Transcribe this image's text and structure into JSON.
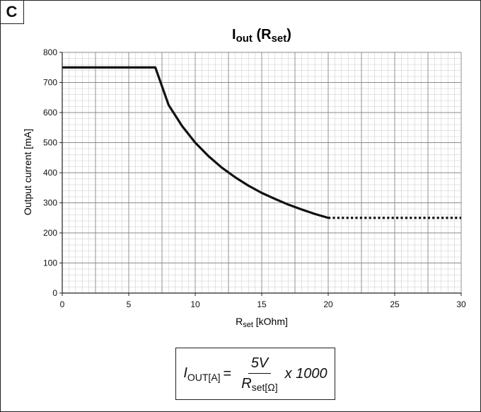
{
  "panel": {
    "label": "C"
  },
  "chart_data": {
    "type": "line",
    "title": "Iout (Rset)",
    "title_main": "I",
    "title_sub": "out",
    "title_rest": " (R",
    "title_rest_sub": "set",
    "title_close": ")",
    "xlabel": "Rset [kOhm]",
    "xlabel_main": "R",
    "xlabel_sub": "set",
    "xlabel_rest": " [kOhm]",
    "ylabel": "Output current [mA]",
    "xlim": [
      0,
      30
    ],
    "ylim": [
      0,
      800
    ],
    "xticks": [
      0,
      5,
      10,
      15,
      20,
      25,
      30
    ],
    "yticks": [
      0,
      100,
      200,
      300,
      400,
      500,
      600,
      700,
      800
    ],
    "grid": true,
    "series": [
      {
        "style": "solid",
        "color": "#111111",
        "x": [
          0,
          7,
          8,
          9,
          10,
          11,
          12,
          13,
          14,
          15,
          16,
          17,
          18,
          19,
          20
        ],
        "y": [
          750,
          750,
          625,
          556,
          500,
          455,
          417,
          385,
          357,
          333,
          313,
          294,
          278,
          263,
          250
        ]
      },
      {
        "style": "dotted",
        "color": "#111111",
        "x": [
          20,
          30
        ],
        "y": [
          250,
          250
        ]
      }
    ]
  },
  "formula": {
    "lhs_main": "I",
    "lhs_sub": "OUT[A]",
    "equals": "=",
    "numerator": "5V",
    "denominator_main": "R",
    "denominator_sub": "set[Ω]",
    "multiplier": "x 1000"
  }
}
